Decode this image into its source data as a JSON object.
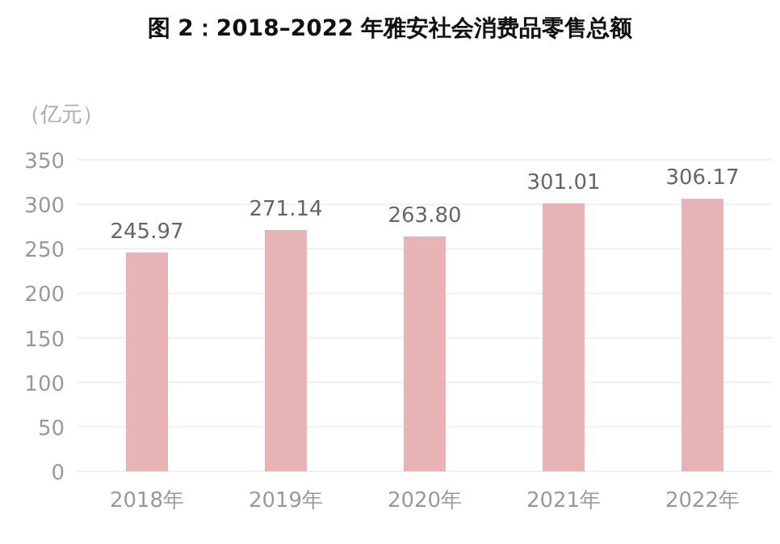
{
  "chart_data": {
    "type": "bar",
    "title": "图 2：2018–2022 年雅安社会消费品零售总额",
    "ylabel": "（亿元）",
    "categories": [
      "2018年",
      "2019年",
      "2020年",
      "2021年",
      "2022年"
    ],
    "values": [
      245.97,
      271.14,
      263.8,
      301.01,
      306.17
    ],
    "value_labels": [
      "245.97",
      "271.14",
      "263.80",
      "301.01",
      "306.17"
    ],
    "color": "#e8b3b5",
    "ylim": [
      0,
      350
    ],
    "yticks": [
      0,
      50,
      100,
      150,
      200,
      250,
      300,
      350
    ],
    "grid": "y"
  }
}
